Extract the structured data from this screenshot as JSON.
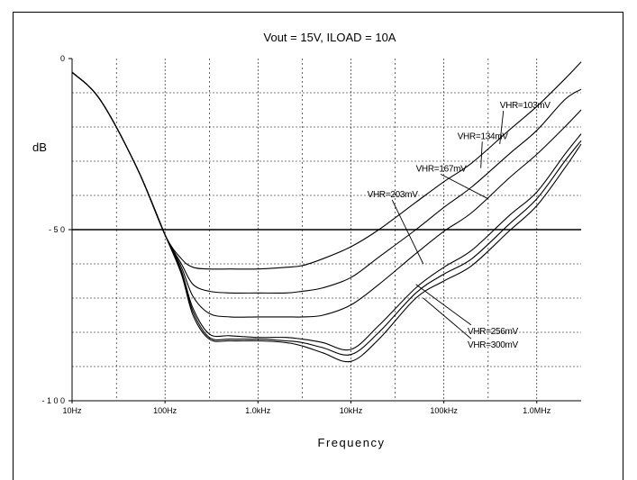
{
  "chart_data": {
    "type": "line",
    "title": "Vout = 15V, ILOAD = 10A",
    "xlabel": "Frequency",
    "ylabel": "dB",
    "x_scale": "log",
    "x_unit": "Hz",
    "xlim": [
      10,
      3000000
    ],
    "ylim": [
      -100,
      0
    ],
    "grid": true,
    "x_ticks": [
      {
        "value": 10,
        "label": "10Hz"
      },
      {
        "value": 100,
        "label": "100Hz"
      },
      {
        "value": 1000,
        "label": "1.0kHz"
      },
      {
        "value": 10000,
        "label": "10kHz"
      },
      {
        "value": 100000,
        "label": "100kHz"
      },
      {
        "value": 1000000,
        "label": "1.0MHz"
      }
    ],
    "y_ticks": [
      {
        "value": 0,
        "label": "0"
      },
      {
        "value": -50,
        "label": "- 5 0"
      },
      {
        "value": -100,
        "label": "- 1 0 0"
      }
    ],
    "reference_line": -50,
    "series": [
      {
        "name": "VHR=103mV",
        "x": [
          10,
          20,
          50,
          100,
          150,
          200,
          300,
          500,
          1000,
          2000,
          3000,
          5000,
          10000,
          20000,
          50000,
          100000,
          200000,
          500000,
          1000000,
          2000000,
          3000000
        ],
        "y": [
          -4,
          -12,
          -32,
          -51.5,
          -58.5,
          -61,
          -61.5,
          -61.5,
          -61.5,
          -61,
          -60.5,
          -58.5,
          -55,
          -50,
          -42,
          -36,
          -30.5,
          -21,
          -14,
          -6,
          -1
        ]
      },
      {
        "name": "VHR=134mV",
        "x": [
          10,
          20,
          50,
          100,
          150,
          200,
          300,
          500,
          1000,
          2000,
          3000,
          5000,
          10000,
          20000,
          50000,
          100000,
          200000,
          500000,
          1000000,
          2000000,
          3000000
        ],
        "y": [
          -4,
          -12,
          -32,
          -51.5,
          -60,
          -66,
          -68,
          -68.5,
          -68.5,
          -68.5,
          -68,
          -67,
          -64,
          -58,
          -50,
          -43.5,
          -37.5,
          -28,
          -21,
          -12,
          -9
        ]
      },
      {
        "name": "VHR=167mV",
        "x": [
          10,
          20,
          50,
          100,
          150,
          200,
          300,
          500,
          1000,
          2000,
          3000,
          5000,
          10000,
          20000,
          50000,
          100000,
          200000,
          500000,
          1000000,
          2000000,
          3000000
        ],
        "y": [
          -4,
          -12,
          -32,
          -51.5,
          -61,
          -69.5,
          -74.5,
          -75.5,
          -75.5,
          -75.5,
          -75.5,
          -75,
          -72,
          -66,
          -57,
          -50.5,
          -45,
          -35,
          -28,
          -20,
          -15
        ]
      },
      {
        "name": "VHR=203mV",
        "x": [
          10,
          20,
          50,
          100,
          150,
          200,
          300,
          500,
          1000,
          2000,
          3000,
          5000,
          10000,
          20000,
          50000,
          100000,
          200000,
          500000,
          1000000,
          2000000,
          3000000
        ],
        "y": [
          -4,
          -12,
          -32,
          -51.5,
          -62,
          -73,
          -80.5,
          -81,
          -81.5,
          -81.5,
          -82,
          -83,
          -85,
          -78,
          -67,
          -61,
          -56,
          -46,
          -39,
          -28,
          -22
        ]
      },
      {
        "name": "VHR=256mV",
        "x": [
          10,
          20,
          50,
          100,
          150,
          200,
          300,
          500,
          1000,
          2000,
          3000,
          5000,
          10000,
          20000,
          50000,
          100000,
          200000,
          500000,
          1000000,
          2000000,
          3000000
        ],
        "y": [
          -4,
          -12,
          -32,
          -51.5,
          -62.5,
          -74,
          -81.5,
          -82,
          -82,
          -82.5,
          -83,
          -84.5,
          -86.5,
          -80,
          -68.5,
          -63,
          -58.5,
          -48.5,
          -41,
          -30,
          -24
        ]
      },
      {
        "name": "VHR=300mV",
        "x": [
          10,
          20,
          50,
          100,
          150,
          200,
          300,
          500,
          1000,
          2000,
          3000,
          5000,
          10000,
          20000,
          50000,
          100000,
          200000,
          500000,
          1000000,
          2000000,
          3000000
        ],
        "y": [
          -4,
          -12,
          -32,
          -51.5,
          -63,
          -75,
          -82,
          -82.5,
          -82.5,
          -83,
          -84,
          -86,
          -88.5,
          -82,
          -70,
          -65,
          -60.5,
          -50.5,
          -43,
          -32,
          -25
        ]
      }
    ],
    "annotations": [
      {
        "text": "VHR=103mV",
        "series": "VHR=103mV",
        "label_x": 400000,
        "label_y": -14.5,
        "tip_x": 400000,
        "tip_y": -25
      },
      {
        "text": "VHR=134mV",
        "series": "VHR=134mV",
        "label_x": 140000,
        "label_y": -23.5,
        "tip_x": 250000,
        "tip_y": -32
      },
      {
        "text": "VHR=167mV",
        "series": "VHR=167mV",
        "label_x": 50000,
        "label_y": -33,
        "tip_x": 300000,
        "tip_y": -41
      },
      {
        "text": "VHR=203mV",
        "series": "VHR=203mV",
        "label_x": 15000,
        "label_y": -40.5,
        "tip_x": 60000,
        "tip_y": -60
      },
      {
        "text": "VHR=256mV",
        "series": "VHR=256mV",
        "label_x": 180000,
        "label_y": -80.5,
        "tip_x": 50000,
        "tip_y": -66
      },
      {
        "text": "VHR=300mV",
        "series": "VHR=300mV",
        "label_x": 180000,
        "label_y": -84.5,
        "tip_x": 60000,
        "tip_y": -70
      }
    ]
  }
}
